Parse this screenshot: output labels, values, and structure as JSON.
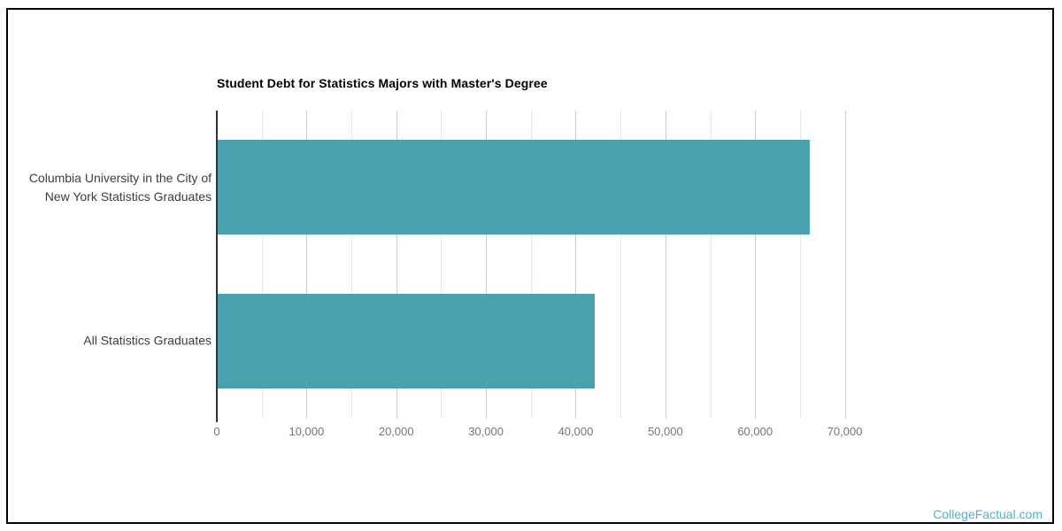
{
  "chart_data": {
    "type": "bar",
    "orientation": "horizontal",
    "title": "Student Debt for Statistics Majors with Master's Degree",
    "categories": [
      "Columbia University in the City of New York Statistics Graduates",
      "All Statistics Graduates"
    ],
    "category_lines": [
      [
        "Columbia University in the City of",
        "New York Statistics Graduates"
      ],
      [
        "All Statistics Graduates"
      ]
    ],
    "values": [
      66000,
      42000
    ],
    "xlabel": "",
    "ylabel": "",
    "axis": {
      "min": 0,
      "max": 73000,
      "major_step": 10000,
      "minor_step": 5000,
      "ticks": [
        {
          "value": 0,
          "label": "0"
        },
        {
          "value": 10000,
          "label": "10,000"
        },
        {
          "value": 20000,
          "label": "20,000"
        },
        {
          "value": 30000,
          "label": "30,000"
        },
        {
          "value": 40000,
          "label": "40,000"
        },
        {
          "value": 50000,
          "label": "50,000"
        },
        {
          "value": 60000,
          "label": "60,000"
        },
        {
          "value": 70000,
          "label": "70,000"
        }
      ]
    },
    "grid": true,
    "legend": "none",
    "colors": {
      "bar": "#4aa0ad",
      "major_gridline": "#cccccc",
      "minor_gridline": "#e9e9e9",
      "baseline": "#333333",
      "tick_text": "#757575",
      "category_text": "#3c3c3c",
      "title_text": "#000000"
    }
  },
  "footer": {
    "brand": "CollegeFactual.com",
    "color": "#4fb0cf"
  },
  "frame": {
    "border_color": "#000000"
  }
}
